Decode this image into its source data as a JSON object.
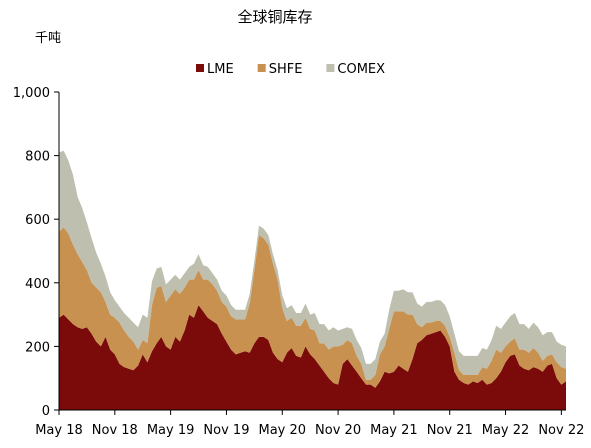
{
  "chart_data": {
    "type": "area",
    "stacked": true,
    "title": "全球铜库存",
    "ylabel": "千吨",
    "xlabel": "",
    "ylim": [
      0,
      1000
    ],
    "yticks": [
      0,
      200,
      400,
      600,
      800,
      1000
    ],
    "ytick_labels": [
      "0",
      "200",
      "400",
      "600",
      "800",
      "1,000"
    ],
    "xticks": [
      {
        "x": 0,
        "label": "May 18"
      },
      {
        "x": 6,
        "label": "Nov 18"
      },
      {
        "x": 12,
        "label": "May 19"
      },
      {
        "x": 18,
        "label": "Nov 19"
      },
      {
        "x": 24,
        "label": "May 20"
      },
      {
        "x": 30,
        "label": "Nov 20"
      },
      {
        "x": 36,
        "label": "May 21"
      },
      {
        "x": 42,
        "label": "Nov 21"
      },
      {
        "x": 48,
        "label": "May 22"
      },
      {
        "x": 54,
        "label": "Nov 22"
      }
    ],
    "xlim": [
      0,
      54.5
    ],
    "x": [
      0,
      0.5,
      1,
      1.5,
      2,
      2.5,
      3,
      3.5,
      4,
      4.5,
      5,
      5.5,
      6,
      6.5,
      7,
      7.5,
      8,
      8.5,
      9,
      9.5,
      10,
      10.5,
      11,
      11.5,
      12,
      12.5,
      13,
      13.5,
      14,
      14.5,
      15,
      15.5,
      16,
      16.5,
      17,
      17.5,
      18,
      18.5,
      19,
      19.5,
      20,
      20.5,
      21,
      21.5,
      22,
      22.5,
      23,
      23.5,
      24,
      24.5,
      25,
      25.5,
      26,
      26.5,
      27,
      27.5,
      28,
      28.5,
      29,
      29.5,
      30,
      30.5,
      31,
      31.5,
      32,
      32.5,
      33,
      33.5,
      34,
      34.5,
      35,
      35.5,
      36,
      36.5,
      37,
      37.5,
      38,
      38.5,
      39,
      39.5,
      40,
      40.5,
      41,
      41.5,
      42,
      42.5,
      43,
      43.5,
      44,
      44.5,
      45,
      45.5,
      46,
      46.5,
      47,
      47.5,
      48,
      48.5,
      49,
      49.5,
      50,
      50.5,
      51,
      51.5,
      52,
      52.5,
      53,
      53.5,
      54,
      54.5
    ],
    "series": [
      {
        "name": "LME",
        "color": "#7b0a0a",
        "values": [
          290,
          300,
          285,
          270,
          260,
          255,
          260,
          240,
          215,
          200,
          230,
          190,
          175,
          145,
          135,
          130,
          125,
          140,
          175,
          150,
          185,
          210,
          230,
          200,
          190,
          230,
          215,
          250,
          300,
          290,
          330,
          310,
          290,
          280,
          270,
          240,
          215,
          190,
          175,
          180,
          185,
          180,
          210,
          230,
          230,
          220,
          180,
          160,
          150,
          180,
          195,
          170,
          165,
          200,
          175,
          160,
          140,
          120,
          100,
          85,
          80,
          145,
          160,
          140,
          120,
          100,
          80,
          80,
          70,
          90,
          120,
          115,
          120,
          140,
          130,
          120,
          160,
          210,
          220,
          235,
          240,
          245,
          250,
          230,
          200,
          120,
          95,
          85,
          80,
          90,
          85,
          95,
          80,
          85,
          100,
          120,
          150,
          170,
          175,
          140,
          130,
          125,
          135,
          130,
          120,
          140,
          145,
          100,
          80,
          90
        ]
      },
      {
        "name": "SHFE",
        "color": "#c8914f",
        "values": [
          270,
          275,
          270,
          250,
          230,
          210,
          180,
          160,
          170,
          170,
          110,
          110,
          115,
          130,
          115,
          100,
          90,
          50,
          45,
          60,
          145,
          175,
          160,
          140,
          170,
          150,
          150,
          135,
          110,
          120,
          110,
          100,
          120,
          115,
          105,
          100,
          110,
          105,
          110,
          105,
          100,
          155,
          230,
          320,
          310,
          300,
          280,
          250,
          170,
          100,
          95,
          95,
          100,
          90,
          80,
          90,
          70,
          90,
          90,
          115,
          120,
          60,
          60,
          70,
          50,
          45,
          15,
          15,
          40,
          85,
          80,
          140,
          190,
          170,
          180,
          180,
          140,
          60,
          40,
          40,
          35,
          35,
          30,
          35,
          30,
          60,
          30,
          25,
          30,
          20,
          25,
          40,
          50,
          70,
          90,
          60,
          50,
          45,
          50,
          50,
          60,
          55,
          60,
          50,
          35,
          30,
          30,
          50,
          55,
          40
        ]
      },
      {
        "name": "COMEX",
        "color": "#bfbfaf",
        "values": [
          250,
          240,
          230,
          220,
          180,
          170,
          150,
          140,
          110,
          90,
          80,
          70,
          55,
          50,
          55,
          60,
          60,
          70,
          80,
          80,
          75,
          60,
          60,
          55,
          50,
          45,
          45,
          45,
          40,
          50,
          50,
          45,
          40,
          35,
          35,
          35,
          35,
          35,
          30,
          30,
          30,
          30,
          30,
          30,
          30,
          30,
          30,
          30,
          40,
          40,
          40,
          40,
          40,
          45,
          45,
          55,
          60,
          60,
          60,
          60,
          50,
          50,
          40,
          45,
          50,
          50,
          50,
          50,
          50,
          40,
          40,
          60,
          65,
          65,
          70,
          70,
          70,
          65,
          65,
          65,
          65,
          65,
          65,
          65,
          65,
          60,
          60,
          60,
          60,
          60,
          60,
          60,
          60,
          65,
          75,
          75,
          75,
          80,
          80,
          80,
          80,
          75,
          80,
          80,
          80,
          75,
          70,
          65,
          70,
          70
        ]
      }
    ],
    "legend_position": "top-center",
    "grid": false
  }
}
